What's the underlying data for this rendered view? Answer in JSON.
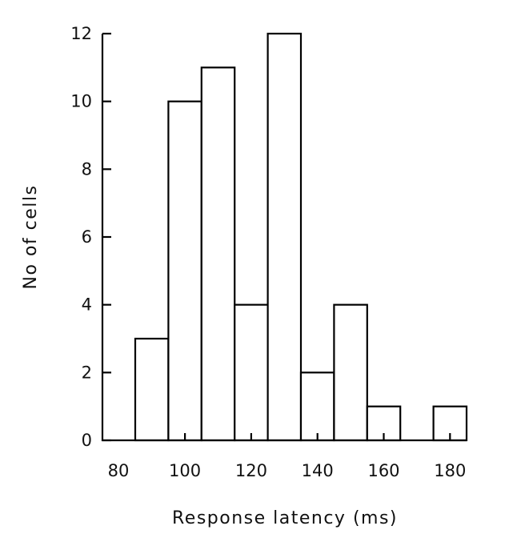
{
  "chart_data": {
    "type": "bar",
    "title": "",
    "xlabel": "Response latency (ms)",
    "ylabel": "No of cells",
    "bin_width": 10,
    "bins": [
      {
        "start": 85,
        "end": 95,
        "value": 3
      },
      {
        "start": 95,
        "end": 105,
        "value": 10
      },
      {
        "start": 105,
        "end": 115,
        "value": 11
      },
      {
        "start": 115,
        "end": 125,
        "value": 4
      },
      {
        "start": 125,
        "end": 135,
        "value": 12
      },
      {
        "start": 135,
        "end": 145,
        "value": 2
      },
      {
        "start": 145,
        "end": 155,
        "value": 4
      },
      {
        "start": 155,
        "end": 165,
        "value": 1
      },
      {
        "start": 165,
        "end": 175,
        "value": 0
      },
      {
        "start": 175,
        "end": 185,
        "value": 1
      }
    ],
    "xlim": [
      75,
      185
    ],
    "ylim": [
      0,
      12
    ],
    "x_ticks": [
      "80",
      "100",
      "120",
      "140",
      "160",
      "180"
    ],
    "x_tick_values": [
      80,
      100,
      120,
      140,
      160,
      180
    ],
    "y_ticks": [
      "0",
      "2",
      "4",
      "6",
      "8",
      "10",
      "12"
    ],
    "y_tick_values": [
      0,
      2,
      4,
      6,
      8,
      10,
      12
    ],
    "grid": false,
    "legend": "none"
  }
}
